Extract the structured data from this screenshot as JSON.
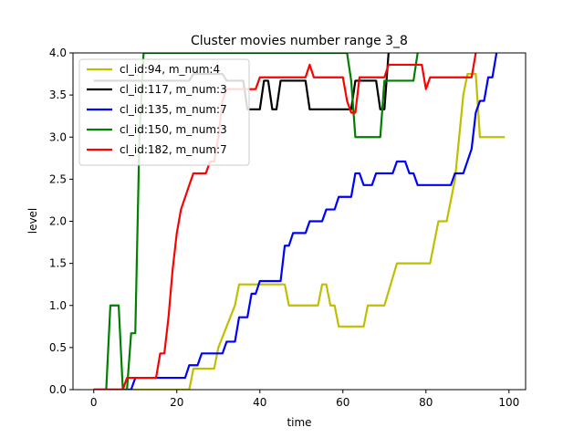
{
  "chart_data": {
    "type": "line",
    "title": "Cluster movies number range 3_8",
    "xlabel": "time",
    "ylabel": "level",
    "xlim": [
      -5,
      104
    ],
    "ylim": [
      0,
      4.0
    ],
    "xticks": [
      0,
      20,
      40,
      60,
      80,
      100
    ],
    "yticks": [
      0.0,
      0.5,
      1.0,
      1.5,
      2.0,
      2.5,
      3.0,
      3.5,
      4.0
    ],
    "xtick_labels": [
      "0",
      "20",
      "40",
      "60",
      "80",
      "100"
    ],
    "ytick_labels": [
      "0.0",
      "0.5",
      "1.0",
      "1.5",
      "2.0",
      "2.5",
      "3.0",
      "3.5",
      "4.0"
    ],
    "grid": false,
    "legend_position": "upper-left",
    "series": [
      {
        "name": "cl_id:94, m_num:4",
        "color": "#bfbf00",
        "points": [
          [
            0,
            0
          ],
          [
            23,
            0
          ],
          [
            24,
            0.25
          ],
          [
            29,
            0.25
          ],
          [
            30,
            0.5
          ],
          [
            32,
            0.75
          ],
          [
            34,
            1.0
          ],
          [
            35,
            1.25
          ],
          [
            46,
            1.25
          ],
          [
            47,
            1.0
          ],
          [
            54,
            1.0
          ],
          [
            55,
            1.25
          ],
          [
            56,
            1.25
          ],
          [
            57,
            1.0
          ],
          [
            58,
            1.0
          ],
          [
            59,
            0.75
          ],
          [
            65,
            0.75
          ],
          [
            66,
            1.0
          ],
          [
            70,
            1.0
          ],
          [
            73,
            1.5
          ],
          [
            81,
            1.5
          ],
          [
            83,
            2.0
          ],
          [
            85,
            2.0
          ],
          [
            87,
            2.5
          ],
          [
            88,
            3.0
          ],
          [
            89,
            3.5
          ],
          [
            90,
            3.75
          ],
          [
            92,
            3.75
          ],
          [
            93,
            3.0
          ],
          [
            99,
            3.0
          ]
        ]
      },
      {
        "name": "cl_id:117, m_num:3",
        "color": "#000000",
        "points": [
          [
            0,
            3.67
          ],
          [
            23,
            3.67
          ],
          [
            24,
            3.75
          ],
          [
            31,
            3.75
          ],
          [
            32,
            3.67
          ],
          [
            36,
            3.67
          ],
          [
            37,
            3.33
          ],
          [
            40,
            3.33
          ],
          [
            41,
            3.67
          ],
          [
            42,
            3.67
          ],
          [
            43,
            3.33
          ],
          [
            44,
            3.33
          ],
          [
            45,
            3.67
          ],
          [
            51,
            3.67
          ],
          [
            52,
            3.33
          ],
          [
            62,
            3.33
          ],
          [
            63,
            3.67
          ],
          [
            68,
            3.67
          ],
          [
            69,
            3.33
          ],
          [
            70,
            3.33
          ],
          [
            71,
            4.0
          ]
        ]
      },
      {
        "name": "cl_id:135, m_num:7",
        "color": "#0000ff",
        "points": [
          [
            0,
            0
          ],
          [
            9,
            0
          ],
          [
            10,
            0.14
          ],
          [
            22,
            0.14
          ],
          [
            23,
            0.29
          ],
          [
            25,
            0.29
          ],
          [
            26,
            0.43
          ],
          [
            31,
            0.43
          ],
          [
            32,
            0.57
          ],
          [
            34,
            0.57
          ],
          [
            35,
            0.86
          ],
          [
            37,
            0.86
          ],
          [
            38,
            1.14
          ],
          [
            39,
            1.14
          ],
          [
            40,
            1.29
          ],
          [
            45,
            1.29
          ],
          [
            46,
            1.71
          ],
          [
            47,
            1.71
          ],
          [
            48,
            1.86
          ],
          [
            51,
            1.86
          ],
          [
            52,
            2.0
          ],
          [
            55,
            2.0
          ],
          [
            56,
            2.14
          ],
          [
            58,
            2.14
          ],
          [
            59,
            2.29
          ],
          [
            62,
            2.29
          ],
          [
            63,
            2.57
          ],
          [
            64,
            2.57
          ],
          [
            65,
            2.43
          ],
          [
            67,
            2.43
          ],
          [
            68,
            2.57
          ],
          [
            72,
            2.57
          ],
          [
            73,
            2.71
          ],
          [
            75,
            2.71
          ],
          [
            76,
            2.57
          ],
          [
            77,
            2.57
          ],
          [
            78,
            2.43
          ],
          [
            86,
            2.43
          ],
          [
            87,
            2.57
          ],
          [
            89,
            2.57
          ],
          [
            91,
            2.86
          ],
          [
            92,
            3.29
          ],
          [
            93,
            3.43
          ],
          [
            94,
            3.43
          ],
          [
            95,
            3.71
          ],
          [
            96,
            3.71
          ],
          [
            97,
            4.0
          ]
        ]
      },
      {
        "name": "cl_id:150, m_num:3",
        "color": "#008000",
        "points": [
          [
            0,
            0
          ],
          [
            3,
            0
          ],
          [
            4,
            1.0
          ],
          [
            5,
            1.0
          ],
          [
            6,
            1.0
          ],
          [
            7,
            0
          ],
          [
            8,
            0
          ],
          [
            9,
            0.67
          ],
          [
            10,
            0.67
          ],
          [
            11,
            3.0
          ],
          [
            12,
            4.0
          ],
          [
            61,
            4.0
          ],
          [
            62,
            3.67
          ],
          [
            63,
            3.0
          ],
          [
            69,
            3.0
          ],
          [
            70,
            3.67
          ],
          [
            77,
            3.67
          ],
          [
            78,
            4.0
          ]
        ]
      },
      {
        "name": "cl_id:182, m_num:7",
        "color": "#ff0000",
        "points": [
          [
            0,
            0
          ],
          [
            7,
            0
          ],
          [
            8,
            0.14
          ],
          [
            15,
            0.14
          ],
          [
            16,
            0.43
          ],
          [
            17,
            0.43
          ],
          [
            18,
            0.86
          ],
          [
            19,
            1.43
          ],
          [
            20,
            1.86
          ],
          [
            21,
            2.14
          ],
          [
            23,
            2.43
          ],
          [
            24,
            2.57
          ],
          [
            27,
            2.57
          ],
          [
            28,
            2.71
          ],
          [
            29,
            2.71
          ],
          [
            30,
            3.0
          ],
          [
            31,
            3.43
          ],
          [
            32,
            3.57
          ],
          [
            39,
            3.57
          ],
          [
            40,
            3.71
          ],
          [
            51,
            3.71
          ],
          [
            52,
            3.86
          ],
          [
            53,
            3.71
          ],
          [
            60,
            3.71
          ],
          [
            61,
            3.43
          ],
          [
            62,
            3.29
          ],
          [
            63,
            3.29
          ],
          [
            64,
            3.71
          ],
          [
            70,
            3.71
          ],
          [
            71,
            3.86
          ],
          [
            79,
            3.86
          ],
          [
            80,
            3.57
          ],
          [
            81,
            3.71
          ],
          [
            91,
            3.71
          ],
          [
            92,
            4.0
          ]
        ]
      }
    ]
  }
}
